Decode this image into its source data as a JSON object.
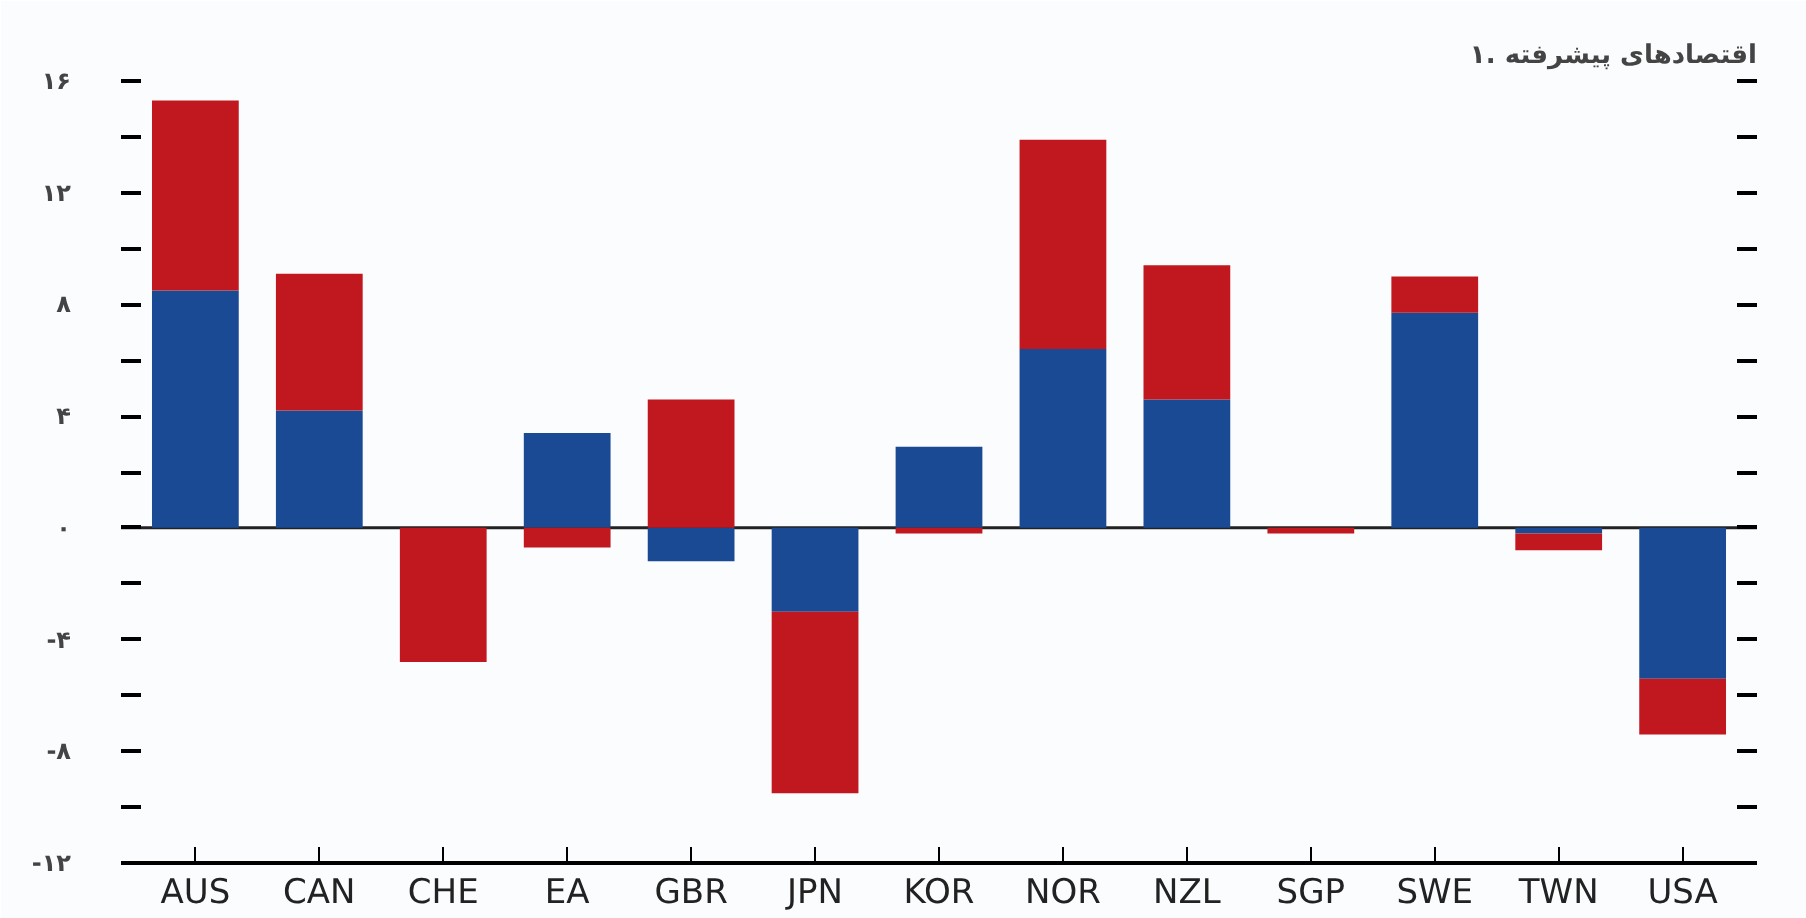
{
  "chart_data": {
    "type": "bar",
    "stacked": true,
    "title": "۱. اقتصادهای پیشرفته",
    "categories": [
      "AUS",
      "CAN",
      "CHE",
      "EA",
      "GBR",
      "JPN",
      "KOR",
      "NOR",
      "NZL",
      "SGP",
      "SWE",
      "TWN",
      "USA"
    ],
    "series": [
      {
        "color": "#1a4a94",
        "values": [
          8.5,
          4.2,
          null,
          3.4,
          -1.2,
          -3.0,
          2.9,
          6.4,
          4.6,
          null,
          7.7,
          -0.2,
          -5.4
        ]
      },
      {
        "color": "#c0181e",
        "values": [
          6.8,
          4.9,
          -4.8,
          -0.7,
          4.6,
          -6.5,
          -0.2,
          7.5,
          4.8,
          -0.2,
          1.3,
          -0.6,
          -2.0
        ]
      }
    ],
    "ylim": [
      -12,
      16
    ],
    "yticks": [
      {
        "value": -12,
        "label": "-۱۲"
      },
      {
        "value": -10,
        "label": null
      },
      {
        "value": -8,
        "label": "-۸"
      },
      {
        "value": -6,
        "label": null
      },
      {
        "value": -4,
        "label": "-۴"
      },
      {
        "value": -2,
        "label": null
      },
      {
        "value": 0,
        "label": "۰"
      },
      {
        "value": 2,
        "label": null
      },
      {
        "value": 4,
        "label": "۴"
      },
      {
        "value": 6,
        "label": null
      },
      {
        "value": 8,
        "label": "۸"
      },
      {
        "value": 10,
        "label": null
      },
      {
        "value": 12,
        "label": "۱۲"
      },
      {
        "value": 14,
        "label": null
      },
      {
        "value": 16,
        "label": "۱۶"
      }
    ],
    "ref_lines": [
      {
        "axis": "y",
        "value": 0,
        "color": "#222222"
      }
    ],
    "grid": false
  }
}
